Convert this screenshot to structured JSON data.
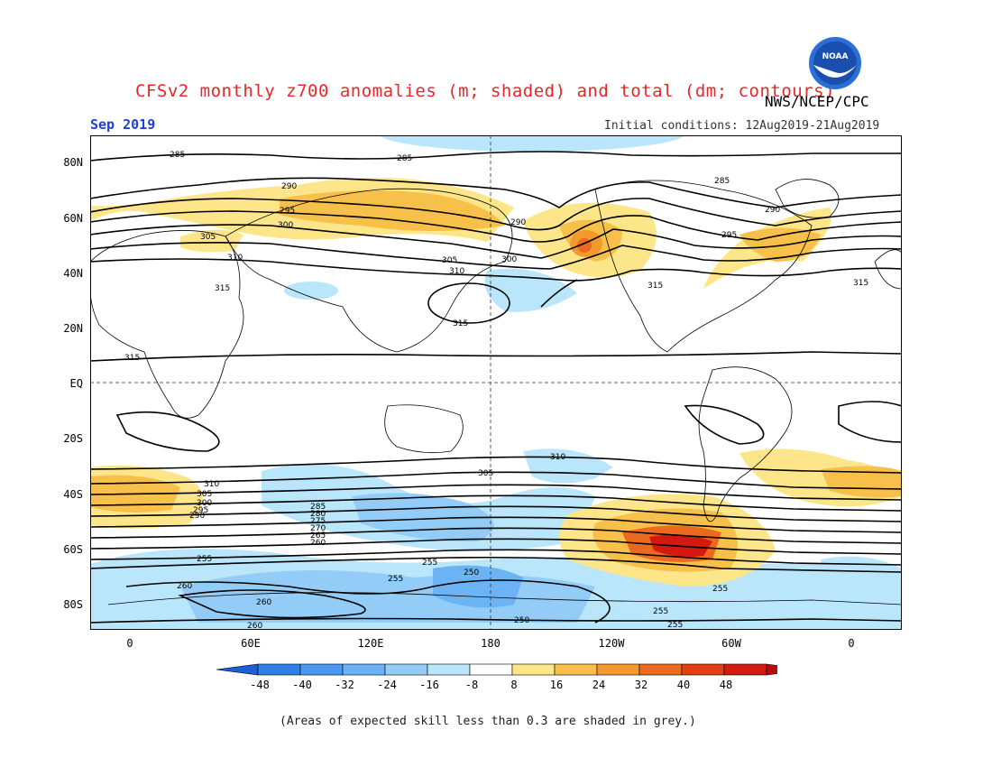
{
  "title": "CFSv2 monthly z700 anomalies (m; shaded) and total (dm; contours)",
  "agency": "NWS/NCEP/CPC",
  "month": "Sep 2019",
  "initial_conditions": "Initial conditions: 12Aug2019-21Aug2019",
  "footnote": "(Areas of expected skill less than 0.3 are shaded in grey.)",
  "logo_text": "NOAA",
  "lat_labels": [
    "80N",
    "60N",
    "40N",
    "20N",
    "EQ",
    "20S",
    "40S",
    "60S",
    "80S"
  ],
  "lon_labels": [
    "0",
    "60E",
    "120E",
    "180",
    "120W",
    "60W",
    "0"
  ],
  "colorbar": {
    "ticks": [
      "-48",
      "-40",
      "-32",
      "-24",
      "-16",
      "-8",
      "8",
      "16",
      "24",
      "32",
      "40",
      "48"
    ],
    "colors": [
      "#1f5fd6",
      "#2f7fe6",
      "#4a98ef",
      "#6cb3f5",
      "#93cdf7",
      "#b9e6fa",
      "#ffffff",
      "#fde68a",
      "#f7c04a",
      "#f29a2e",
      "#ec6a1f",
      "#e53d14",
      "#d41a10",
      "#b80c0c"
    ]
  },
  "contour_labels": [
    "285",
    "285",
    "285",
    "290",
    "290",
    "290",
    "295",
    "295",
    "300",
    "300",
    "305",
    "305",
    "310",
    "310",
    "315",
    "315",
    "315",
    "315",
    "315",
    "310",
    "310",
    "305",
    "305",
    "300",
    "295",
    "290",
    "285",
    "280",
    "275",
    "270",
    "265",
    "260",
    "255",
    "255",
    "255",
    "250",
    "260",
    "260",
    "255",
    "250",
    "255",
    "260",
    "255"
  ]
}
